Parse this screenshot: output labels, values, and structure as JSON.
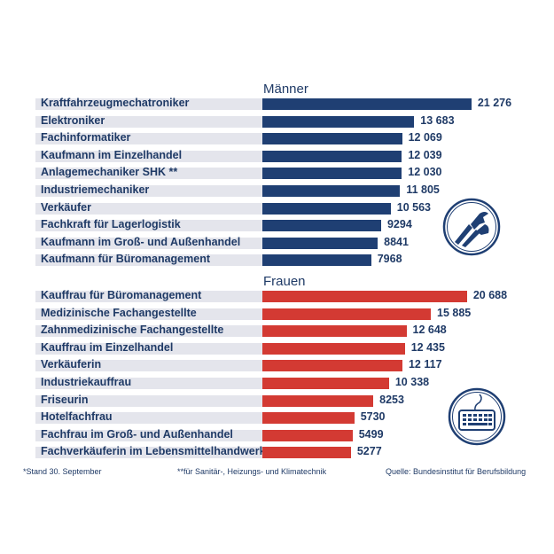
{
  "chart_data": [
    {
      "type": "bar",
      "orientation": "horizontal",
      "title": "Männer",
      "color": "#1f3f73",
      "icon": "pliers-wrench-icon",
      "categories": [
        "Kraftfahrzeugmechatroniker",
        "Elektroniker",
        "Fachinformatiker",
        "Kaufmann im Einzelhandel",
        "Anlagemechaniker SHK **",
        "Industriemechaniker",
        "Verkäufer",
        "Fachkraft für Lagerlogistik",
        "Kaufmann im Groß- und Außenhandel",
        "Kaufmann für Büromanagement"
      ],
      "values": [
        21276,
        13683,
        12069,
        12039,
        12030,
        11805,
        10563,
        9294,
        8841,
        7968
      ],
      "value_labels": [
        "21 276",
        "13 683",
        "12 069",
        "12 039",
        "12 030",
        "11 805",
        "10 563",
        "9294",
        "8841",
        "7968"
      ]
    },
    {
      "type": "bar",
      "orientation": "horizontal",
      "title": "Frauen",
      "color": "#d33a33",
      "icon": "keyboard-icon",
      "categories": [
        "Kauffrau für Büromanagement",
        "Medizinische Fachangestellte",
        "Zahnmedizinische Fachangestellte",
        "Kauffrau im Einzelhandel",
        "Verkäuferin",
        "Industriekauffrau",
        "Friseurin",
        "Hotelfachfrau",
        "Fachfrau im Groß- und Außenhandel",
        "Fachverkäuferin im Lebensmittelhandwerk"
      ],
      "values": [
        20688,
        15885,
        12648,
        12435,
        12117,
        10338,
        8253,
        5730,
        5499,
        5277
      ],
      "value_labels": [
        "20 688",
        "15 885",
        "12 648",
        "12 435",
        "12 117",
        "10 338",
        "8253",
        "5730",
        "5499",
        "5277"
      ]
    }
  ],
  "footnotes": {
    "date": "*Stand 30. September",
    "shk": "**für Sanitär-, Heizungs- und Klimatechnik",
    "source": "Quelle: Bundesinstitut für Berufsbildung"
  }
}
